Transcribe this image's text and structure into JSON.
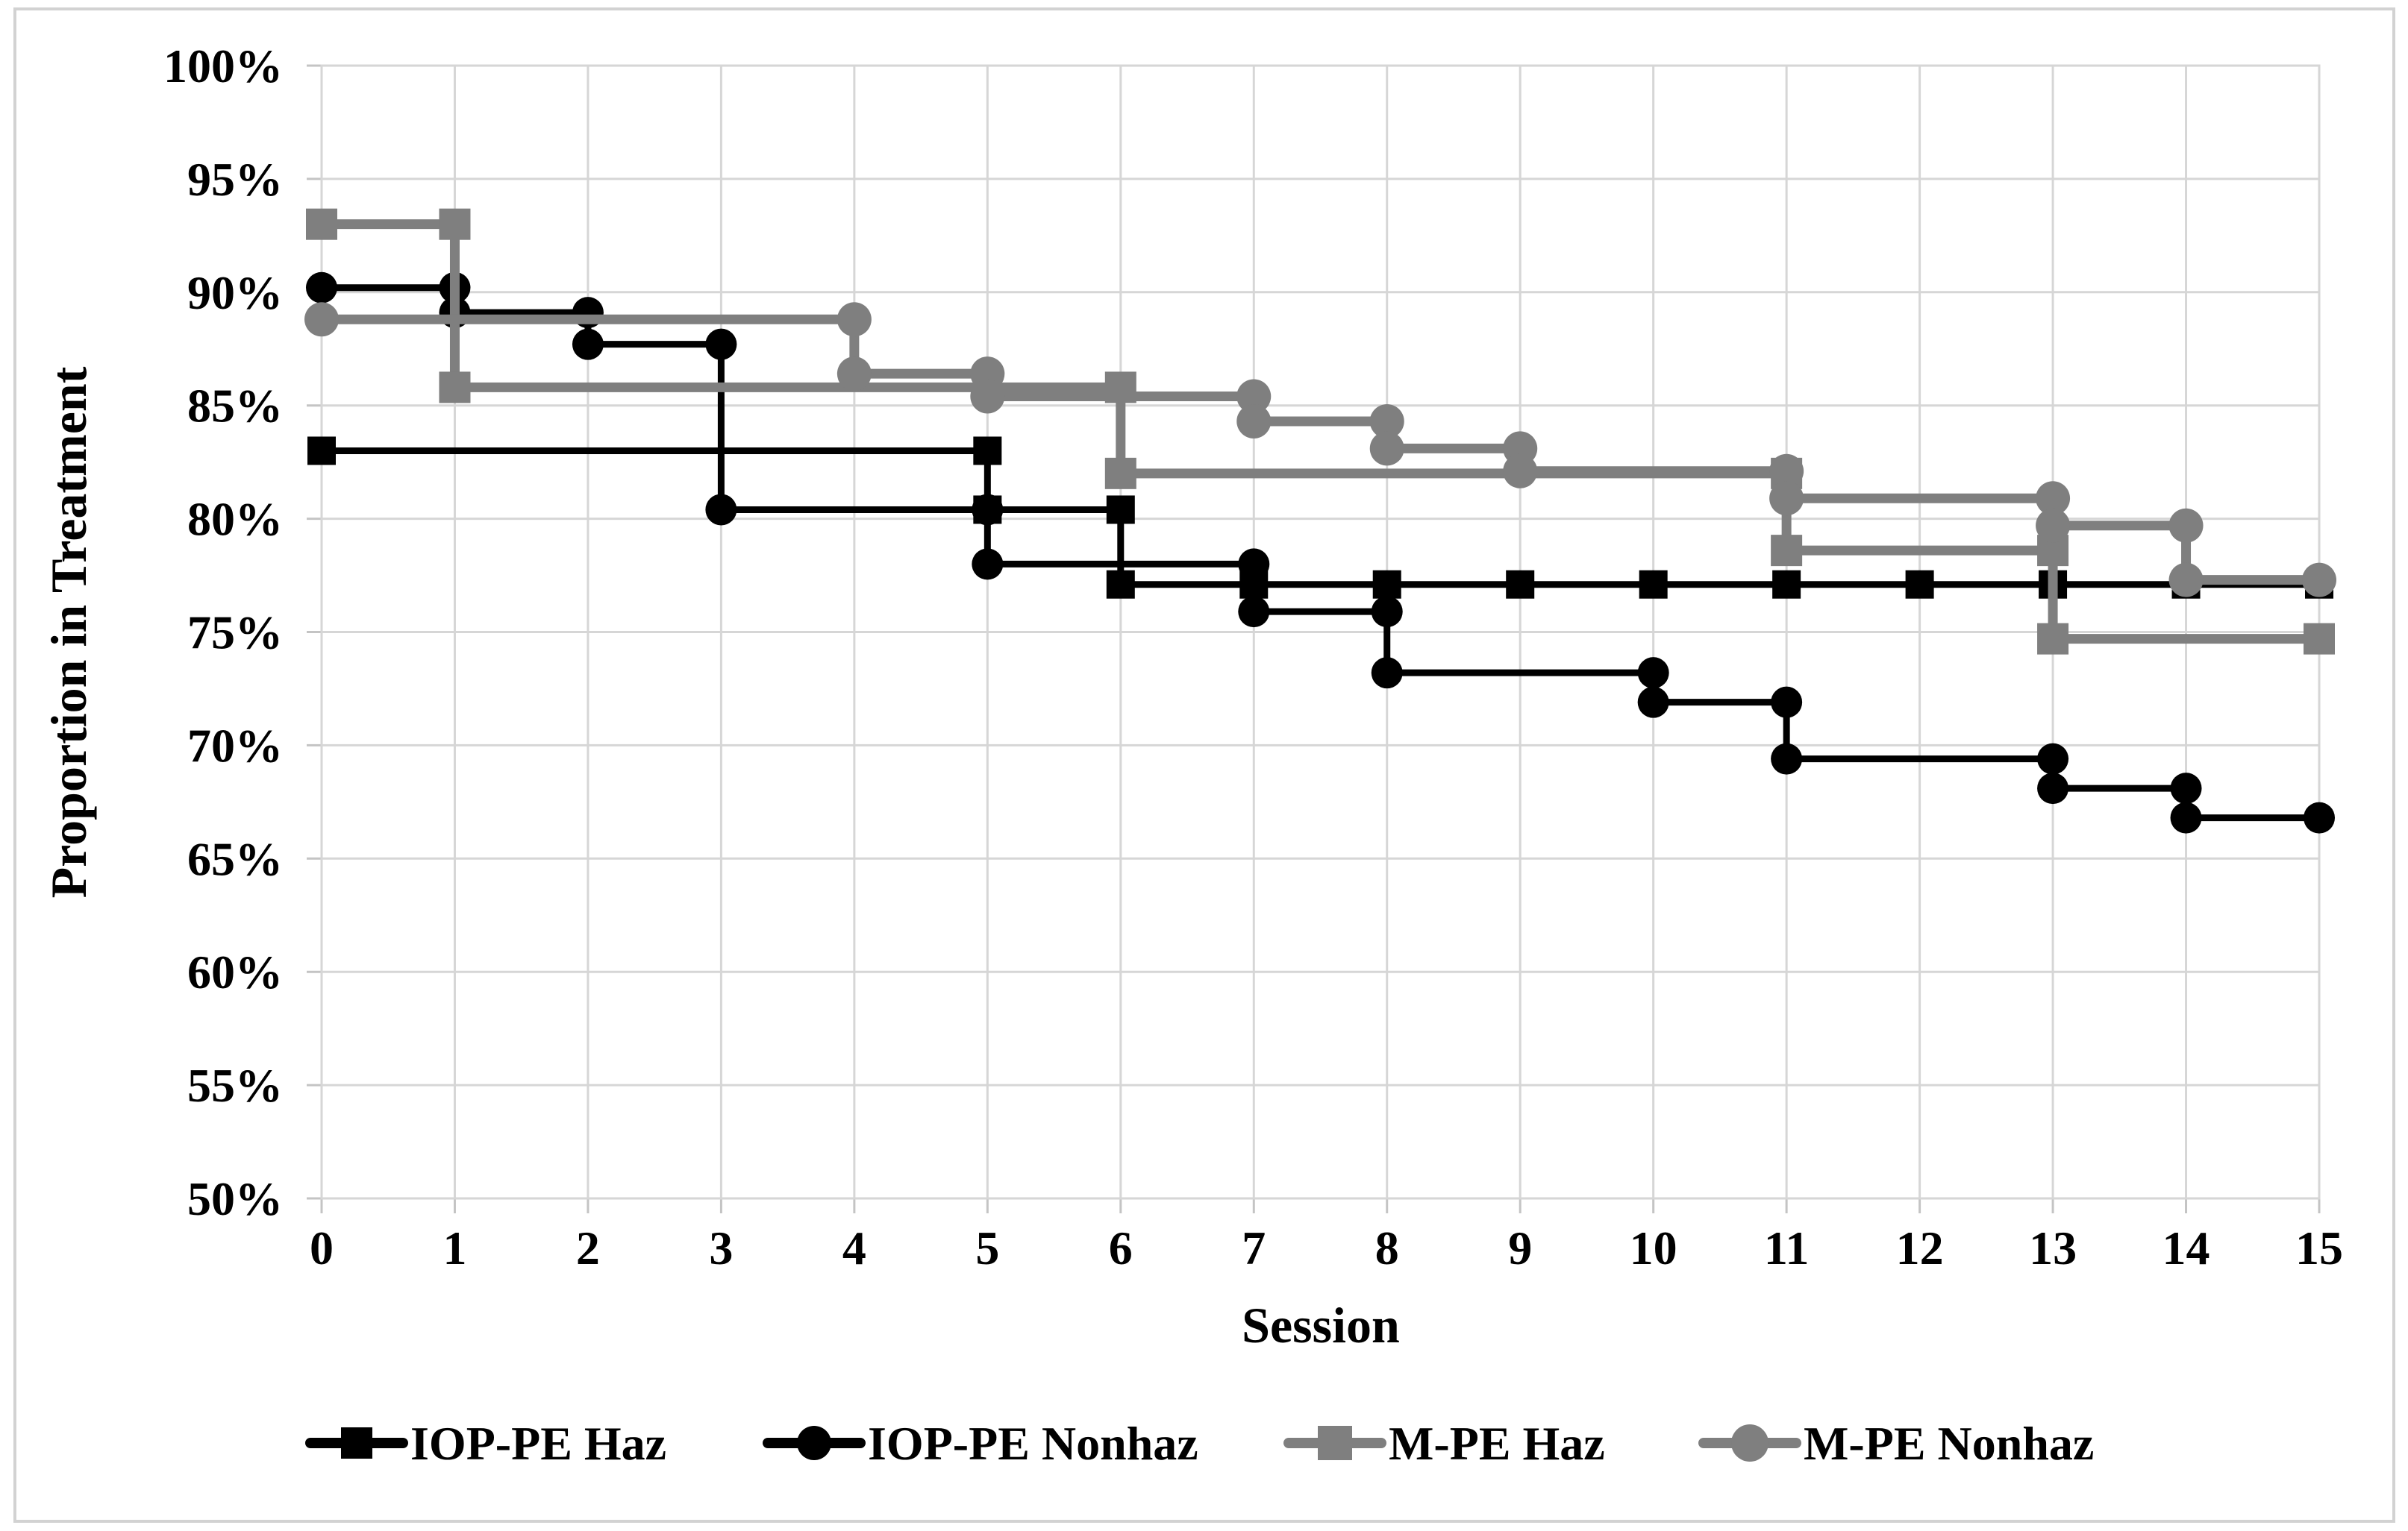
{
  "figure": {
    "background": "#ffffff",
    "outer_border_color": "#d2d2d2"
  },
  "chart_data": {
    "type": "line",
    "subtype": "step-survival",
    "title": "",
    "xlabel": "Session",
    "ylabel": "Proportion in Treatment",
    "xlim": [
      0,
      15
    ],
    "ylim": [
      50,
      100
    ],
    "x_tick_labels": [
      "0",
      "1",
      "2",
      "3",
      "4",
      "5",
      "6",
      "7",
      "8",
      "9",
      "10",
      "11",
      "12",
      "13",
      "14",
      "15"
    ],
    "y_tick_labels": [
      "100%",
      "95%",
      "90%",
      "85%",
      "80%",
      "75%",
      "70%",
      "65%",
      "60%",
      "55%",
      "50%"
    ],
    "y_tick_values": [
      100,
      95,
      90,
      85,
      80,
      75,
      70,
      65,
      60,
      55,
      50
    ],
    "grid": true,
    "gridline_color": "#d6d6d6",
    "legend_position": "bottom",
    "series": [
      {
        "name": "IOP-PE Haz",
        "color": "#000000",
        "marker": "square",
        "steps": [
          [
            0,
            83
          ],
          [
            5,
            80.4
          ],
          [
            6,
            77.1
          ],
          [
            15,
            77.1
          ]
        ],
        "markers": [
          [
            0,
            83
          ],
          [
            5,
            83
          ],
          [
            5,
            80.4
          ],
          [
            6,
            80.4
          ],
          [
            6,
            77.1
          ],
          [
            7,
            77.1
          ],
          [
            8,
            77.1
          ],
          [
            9,
            77.1
          ],
          [
            10,
            77.1
          ],
          [
            11,
            77.1
          ],
          [
            12,
            77.1
          ],
          [
            13,
            77.1
          ],
          [
            14,
            77.1
          ],
          [
            15,
            77.1
          ]
        ]
      },
      {
        "name": "IOP-PE Nonhaz",
        "color": "#000000",
        "marker": "circle",
        "steps": [
          [
            0,
            90.2
          ],
          [
            1,
            89.1
          ],
          [
            2,
            87.7
          ],
          [
            3,
            80.4
          ],
          [
            5,
            78
          ],
          [
            7,
            75.9
          ],
          [
            8,
            73.2
          ],
          [
            10,
            71.9
          ],
          [
            11,
            69.4
          ],
          [
            13,
            68.1
          ],
          [
            14,
            66.8
          ],
          [
            15,
            66.8
          ]
        ],
        "markers": [
          [
            0,
            90.2
          ],
          [
            1,
            90.2
          ],
          [
            1,
            89.1
          ],
          [
            2,
            89.1
          ],
          [
            2,
            87.7
          ],
          [
            3,
            87.7
          ],
          [
            3,
            80.4
          ],
          [
            5,
            80.4
          ],
          [
            5,
            78
          ],
          [
            7,
            78
          ],
          [
            7,
            75.9
          ],
          [
            8,
            75.9
          ],
          [
            8,
            73.2
          ],
          [
            10,
            73.2
          ],
          [
            10,
            71.9
          ],
          [
            11,
            71.9
          ],
          [
            11,
            69.4
          ],
          [
            13,
            69.4
          ],
          [
            13,
            68.1
          ],
          [
            14,
            68.1
          ],
          [
            14,
            66.8
          ],
          [
            15,
            66.8
          ]
        ]
      },
      {
        "name": "M-PE Haz",
        "color": "#7f7f7f",
        "marker": "square",
        "steps": [
          [
            0,
            93
          ],
          [
            1,
            85.8
          ],
          [
            6,
            82
          ],
          [
            11,
            78.6
          ],
          [
            13,
            74.7
          ],
          [
            15,
            74.7
          ]
        ],
        "markers": [
          [
            0,
            93
          ],
          [
            1,
            93
          ],
          [
            1,
            85.8
          ],
          [
            6,
            85.8
          ],
          [
            6,
            82
          ],
          [
            11,
            82
          ],
          [
            11,
            78.6
          ],
          [
            13,
            78.6
          ],
          [
            13,
            74.7
          ],
          [
            15,
            74.7
          ]
        ]
      },
      {
        "name": "M-PE Nonhaz",
        "color": "#7f7f7f",
        "marker": "circle",
        "steps": [
          [
            0,
            88.8
          ],
          [
            4,
            86.4
          ],
          [
            5,
            85.4
          ],
          [
            7,
            84.3
          ],
          [
            8,
            83.1
          ],
          [
            9,
            82.1
          ],
          [
            11,
            80.9
          ],
          [
            13,
            79.7
          ],
          [
            14,
            77.3
          ],
          [
            15,
            77.3
          ]
        ],
        "markers": [
          [
            0,
            88.8
          ],
          [
            4,
            88.8
          ],
          [
            4,
            86.4
          ],
          [
            5,
            86.4
          ],
          [
            5,
            85.4
          ],
          [
            7,
            85.4
          ],
          [
            7,
            84.3
          ],
          [
            8,
            84.3
          ],
          [
            8,
            83.1
          ],
          [
            9,
            83.1
          ],
          [
            9,
            82.1
          ],
          [
            11,
            82.1
          ],
          [
            11,
            80.9
          ],
          [
            13,
            80.9
          ],
          [
            13,
            79.7
          ],
          [
            14,
            79.7
          ],
          [
            14,
            77.3
          ],
          [
            15,
            77.3
          ]
        ]
      }
    ]
  }
}
